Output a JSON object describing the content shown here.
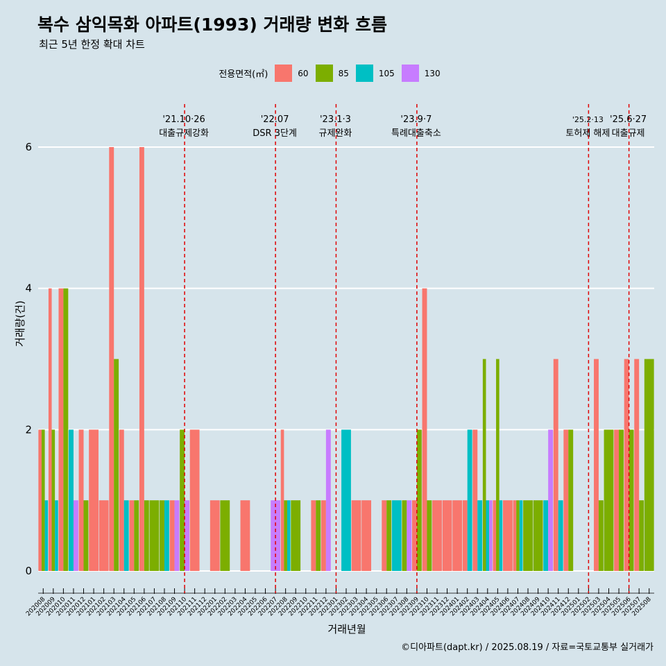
{
  "header": {
    "title": "복수 삼익목화 아파트(1993) 거래량 변화 흐름",
    "subtitle": "최근 5년 한정 확대 차트"
  },
  "legend": {
    "title": "전용면적(㎡)",
    "items": [
      {
        "label": "60",
        "color": "#f8766d"
      },
      {
        "label": "85",
        "color": "#7cae00"
      },
      {
        "label": "105",
        "color": "#00bfc4"
      },
      {
        "label": "130",
        "color": "#c77cff"
      }
    ]
  },
  "caption": "©디아파트(dapt.kr) / 2025.08.19 / 자료=국토교통부 실거래가",
  "chart_data": {
    "type": "bar",
    "xlabel": "거래년월",
    "ylabel": "거래량(건)",
    "ylim": [
      0,
      6.5
    ],
    "yticks": [
      0,
      2,
      4,
      6
    ],
    "grid": true,
    "legend_position": "top",
    "categories": [
      "202008",
      "202009",
      "202010",
      "202011",
      "202012",
      "202101",
      "202102",
      "202103",
      "202104",
      "202105",
      "202106",
      "202107",
      "202108",
      "202109",
      "202110",
      "202111",
      "202112",
      "202201",
      "202202",
      "202203",
      "202204",
      "202205",
      "202206",
      "202207",
      "202208",
      "202209",
      "202210",
      "202211",
      "202212",
      "202301",
      "202302",
      "202303",
      "202304",
      "202305",
      "202306",
      "202307",
      "202308",
      "202309",
      "202310",
      "202311",
      "202312",
      "202401",
      "202402",
      "202403",
      "202404",
      "202405",
      "202406",
      "202407",
      "202408",
      "202409",
      "202410",
      "202411",
      "202412",
      "202501",
      "202502",
      "202503",
      "202504",
      "202505",
      "202506",
      "202507",
      "202508"
    ],
    "series": [
      {
        "name": "60",
        "values": [
          2,
          4,
          4,
          0,
          2,
          2,
          1,
          6,
          2,
          1,
          6,
          0,
          0,
          1,
          0,
          2,
          0,
          1,
          0,
          0,
          1,
          0,
          0,
          0,
          2,
          0,
          0,
          1,
          1,
          0,
          0,
          1,
          1,
          0,
          1,
          0,
          0,
          1,
          4,
          1,
          1,
          1,
          1,
          2,
          0,
          1,
          1,
          1,
          0,
          0,
          0,
          3,
          2,
          0,
          0,
          3,
          0,
          2,
          3,
          3,
          0
        ]
      },
      {
        "name": "85",
        "values": [
          2,
          2,
          4,
          0,
          1,
          0,
          0,
          3,
          0,
          1,
          1,
          1,
          1,
          0,
          2,
          0,
          0,
          0,
          1,
          0,
          0,
          0,
          0,
          0,
          1,
          1,
          0,
          1,
          0,
          0,
          0,
          0,
          0,
          0,
          1,
          0,
          1,
          2,
          1,
          0,
          0,
          0,
          0,
          0,
          3,
          3,
          0,
          1,
          1,
          1,
          0,
          0,
          2,
          0,
          0,
          1,
          2,
          2,
          2,
          1,
          3
        ]
      },
      {
        "name": "105",
        "values": [
          1,
          1,
          0,
          2,
          0,
          0,
          0,
          0,
          1,
          0,
          0,
          0,
          1,
          0,
          0,
          0,
          0,
          0,
          0,
          0,
          0,
          0,
          0,
          0,
          1,
          0,
          0,
          0,
          0,
          0,
          2,
          0,
          0,
          0,
          0,
          1,
          0,
          0,
          0,
          0,
          0,
          0,
          2,
          1,
          1,
          1,
          0,
          1,
          0,
          0,
          1,
          1,
          0,
          0,
          0,
          0,
          0,
          0,
          0,
          0,
          0
        ]
      },
      {
        "name": "130",
        "values": [
          0,
          0,
          0,
          1,
          0,
          0,
          0,
          0,
          0,
          0,
          0,
          0,
          0,
          1,
          1,
          0,
          0,
          0,
          0,
          0,
          0,
          0,
          0,
          1,
          0,
          0,
          0,
          0,
          2,
          0,
          0,
          0,
          0,
          0,
          0,
          0,
          1,
          0,
          0,
          0,
          0,
          0,
          0,
          0,
          1,
          0,
          0,
          0,
          0,
          0,
          2,
          0,
          0,
          0,
          0,
          0,
          0,
          0,
          0,
          0,
          0
        ]
      }
    ],
    "events": [
      {
        "date": "202110",
        "line1": "'21.10·26",
        "line2": "대출규제강화"
      },
      {
        "date": "202207",
        "line1": "'22.07",
        "line2": "DSR 3단계"
      },
      {
        "date": "202301",
        "line1": "'23.1·3",
        "line2": "규제완화"
      },
      {
        "date": "202309",
        "line1": "'23.9·7",
        "line2": "특례대출축소"
      },
      {
        "date": "202502",
        "line1": "'25.2·13",
        "line2": "토허제 해제"
      },
      {
        "date": "202506",
        "line1": "'25.6·27",
        "line2": "대출규제"
      }
    ]
  }
}
